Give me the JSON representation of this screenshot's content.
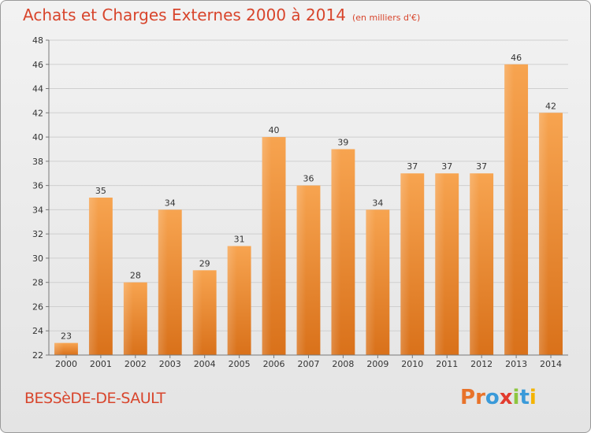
{
  "header": {
    "title": "Achats et Charges Externes 2000 à 2014",
    "unit": "(en milliers d'€)"
  },
  "footer": {
    "city": "BESSèDE-DE-SAULT",
    "logo_text": "Proxiti",
    "logo_colors": [
      "#e8732a",
      "#e8732a",
      "#3a9ad9",
      "#e23b2e",
      "#8dc63f",
      "#3a9ad9",
      "#f4b400"
    ]
  },
  "chart_data": {
    "type": "bar",
    "title": "Achats et Charges Externes 2000 à 2014",
    "subtitle": "(en milliers d'€)",
    "categories": [
      "2000",
      "2001",
      "2002",
      "2003",
      "2004",
      "2005",
      "2006",
      "2007",
      "2008",
      "2009",
      "2010",
      "2011",
      "2012",
      "2013",
      "2014"
    ],
    "values": [
      23,
      35,
      28,
      34,
      29,
      31,
      40,
      36,
      39,
      34,
      37,
      37,
      37,
      46,
      42
    ],
    "ylim": [
      22,
      48
    ],
    "yticks": [
      22,
      24,
      26,
      28,
      30,
      32,
      34,
      36,
      38,
      40,
      42,
      44,
      46,
      48
    ],
    "grid": true,
    "bar_color": "#f08a2e"
  }
}
